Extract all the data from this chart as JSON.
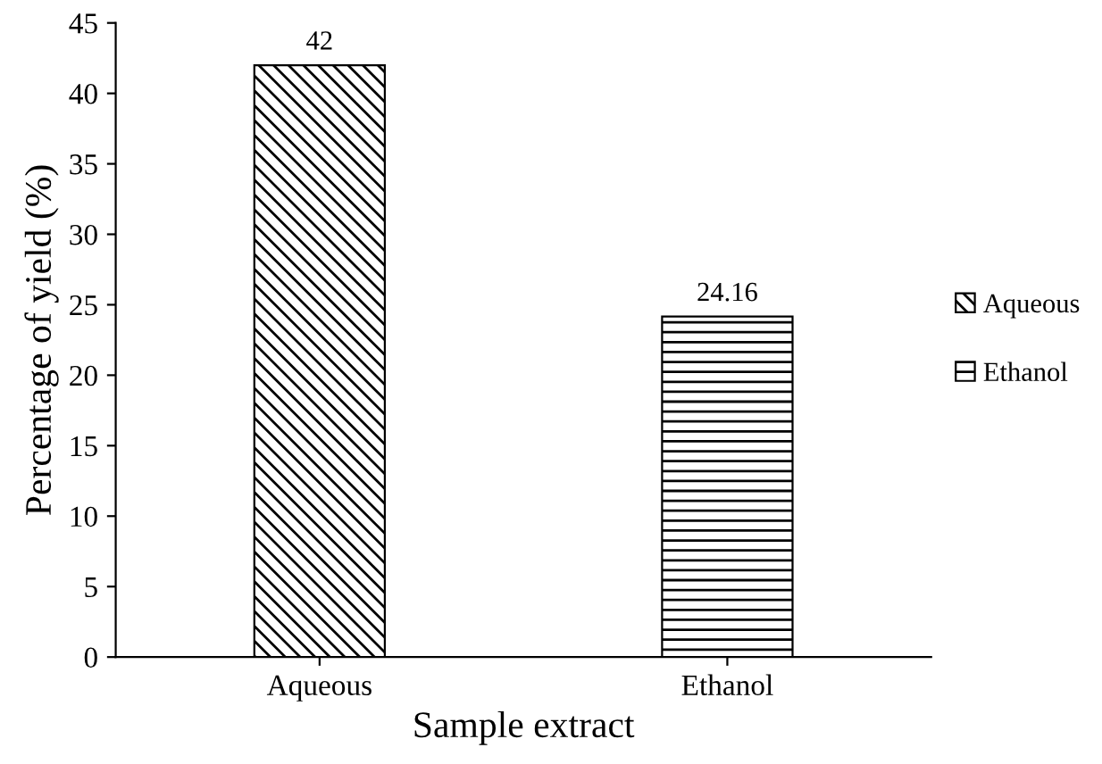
{
  "chart_data": {
    "type": "bar",
    "xlabel": "Sample extract",
    "ylabel": "Percentage of yield (%)",
    "categories": [
      "Aqueous",
      "Ethanol"
    ],
    "series": [
      {
        "name": "Aqueous",
        "color": "#000000",
        "values": [
          42,
          null
        ]
      },
      {
        "name": "Ethanol",
        "color": "#000000",
        "values": [
          null,
          24.16
        ]
      }
    ],
    "ylim": [
      0,
      45
    ],
    "yticks": [
      0,
      5,
      10,
      15,
      20,
      25,
      30,
      35,
      40,
      45
    ],
    "data_labels": true,
    "legend": "right",
    "grid": false
  }
}
